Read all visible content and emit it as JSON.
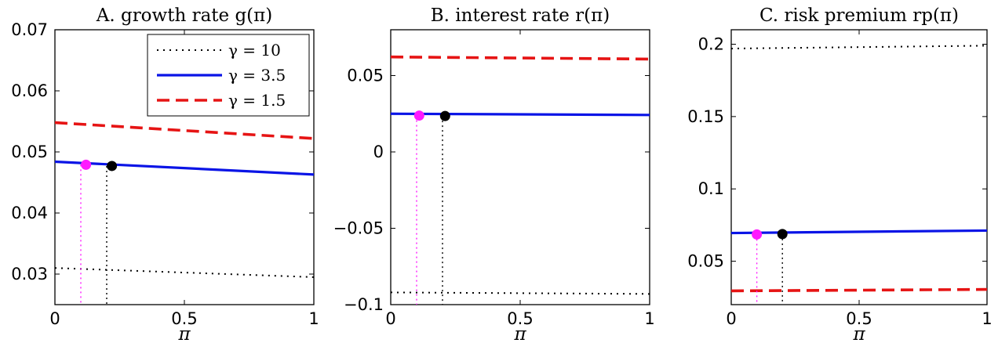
{
  "colors": {
    "gamma_10": "#000000",
    "gamma_3_5": "#0a14e6",
    "gamma_1_5": "#e61414",
    "marker_magenta": "#ff1aff",
    "marker_black": "#000000"
  },
  "legend": {
    "placement": "top-right",
    "entries": [
      {
        "label": "γ = 10",
        "series": "gamma_10",
        "style": "dotted"
      },
      {
        "label": "γ = 3.5",
        "series": "gamma_3_5",
        "style": "solid"
      },
      {
        "label": "γ = 1.5",
        "series": "gamma_1_5",
        "style": "dashed"
      }
    ]
  },
  "chart_data": [
    {
      "type": "line",
      "title": "A. growth rate g(π)",
      "xlabel": "π",
      "ylabel": "",
      "xlim": [
        0,
        1
      ],
      "ylim": [
        0.025,
        0.07
      ],
      "xticks": [
        0,
        0.5,
        1
      ],
      "xtick_labels": [
        "0",
        "0.5",
        "1"
      ],
      "yticks": [
        0.03,
        0.04,
        0.05,
        0.06,
        0.07
      ],
      "ytick_labels": [
        "0.03",
        "0.04",
        "0.05",
        "0.06",
        "0.07"
      ],
      "grid": false,
      "has_legend": true,
      "series": [
        {
          "key": "gamma_10",
          "name": "γ = 10",
          "style": "dotted",
          "x": [
            0,
            1
          ],
          "y": [
            0.031,
            0.0295
          ]
        },
        {
          "key": "gamma_3_5",
          "name": "γ = 3.5",
          "style": "solid",
          "x": [
            0,
            1
          ],
          "y": [
            0.0484,
            0.0463
          ]
        },
        {
          "key": "gamma_1_5",
          "name": "γ = 1.5",
          "style": "dashed",
          "x": [
            0,
            1
          ],
          "y": [
            0.0548,
            0.0522
          ]
        }
      ],
      "markers": [
        {
          "color_key": "marker_magenta",
          "x": 0.12,
          "y": 0.0479,
          "drop_x": 0.1
        },
        {
          "color_key": "marker_black",
          "x": 0.22,
          "y": 0.0477,
          "drop_x": 0.2
        }
      ]
    },
    {
      "type": "line",
      "title": "B. interest rate r(π)",
      "xlabel": "π",
      "ylabel": "",
      "xlim": [
        0,
        1
      ],
      "ylim": [
        -0.1,
        0.08
      ],
      "xticks": [
        0,
        0.5,
        1
      ],
      "xtick_labels": [
        "0",
        "0.5",
        "1"
      ],
      "yticks": [
        -0.1,
        -0.05,
        0,
        0.05
      ],
      "ytick_labels": [
        "−0.1",
        "−0.05",
        "0",
        "0.05"
      ],
      "grid": false,
      "has_legend": false,
      "series": [
        {
          "key": "gamma_10",
          "name": "γ = 10",
          "style": "dotted",
          "x": [
            0,
            1
          ],
          "y": [
            -0.092,
            -0.093
          ]
        },
        {
          "key": "gamma_3_5",
          "name": "γ = 3.5",
          "style": "solid",
          "x": [
            0,
            1
          ],
          "y": [
            0.025,
            0.0242
          ]
        },
        {
          "key": "gamma_1_5",
          "name": "γ = 1.5",
          "style": "dashed",
          "x": [
            0,
            1
          ],
          "y": [
            0.0622,
            0.0608
          ]
        }
      ],
      "markers": [
        {
          "color_key": "marker_magenta",
          "x": 0.11,
          "y": 0.0238,
          "drop_x": 0.1
        },
        {
          "color_key": "marker_black",
          "x": 0.21,
          "y": 0.0235,
          "drop_x": 0.2
        }
      ]
    },
    {
      "type": "line",
      "title": "C. risk premium rp(π)",
      "xlabel": "π",
      "ylabel": "",
      "xlim": [
        0,
        1
      ],
      "ylim": [
        0.02,
        0.21
      ],
      "xticks": [
        0,
        0.5,
        1
      ],
      "xtick_labels": [
        "0",
        "0.5",
        "1"
      ],
      "yticks": [
        0.05,
        0.1,
        0.15,
        0.2
      ],
      "ytick_labels": [
        "0.05",
        "0.1",
        "0.15",
        "0.2"
      ],
      "grid": false,
      "has_legend": false,
      "series": [
        {
          "key": "gamma_10",
          "name": "γ = 10",
          "style": "dotted",
          "x": [
            0,
            1
          ],
          "y": [
            0.197,
            0.199
          ]
        },
        {
          "key": "gamma_3_5",
          "name": "γ = 3.5",
          "style": "solid",
          "x": [
            0,
            1
          ],
          "y": [
            0.0695,
            0.0712
          ]
        },
        {
          "key": "gamma_1_5",
          "name": "γ = 1.5",
          "style": "dashed",
          "x": [
            0,
            1
          ],
          "y": [
            0.0295,
            0.0305
          ]
        }
      ],
      "markers": [
        {
          "color_key": "marker_magenta",
          "x": 0.1,
          "y": 0.0685,
          "drop_x": 0.1
        },
        {
          "color_key": "marker_black",
          "x": 0.2,
          "y": 0.0688,
          "drop_x": 0.2
        }
      ]
    }
  ]
}
